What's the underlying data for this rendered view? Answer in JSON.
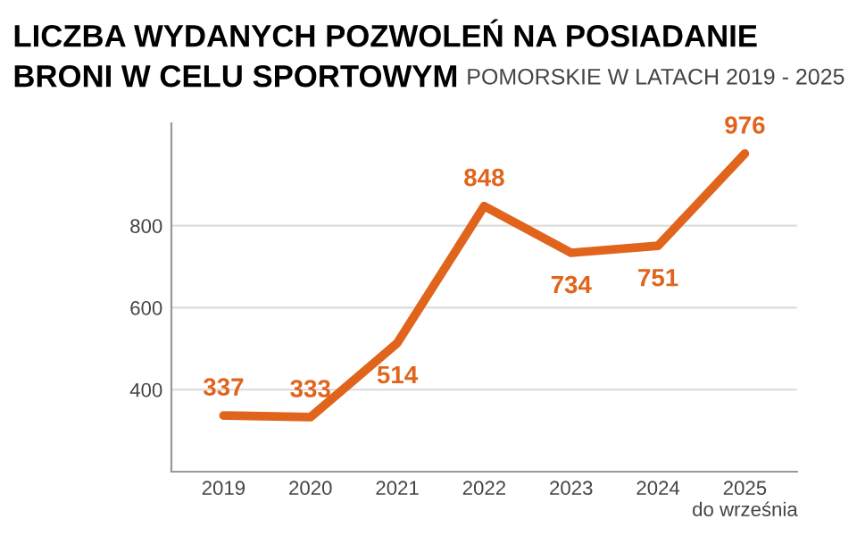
{
  "chart_data": {
    "type": "line",
    "title": "LICZBA WYDANYCH POZWOLEŃ NA POSIADANIE\nBRONI W CELU SPORTOWYM",
    "subtitle": "POMORSKIE W LATACH 2019 - 2025",
    "categories": [
      "2019",
      "2020",
      "2021",
      "2022",
      "2023",
      "2024",
      "2025\ndo września"
    ],
    "series": [
      {
        "color": "#e0641c",
        "values": [
          337,
          333,
          514,
          848,
          734,
          751,
          976
        ]
      }
    ],
    "ylim": [
      200,
      1050
    ],
    "yticks": [
      400,
      600,
      800
    ],
    "grid": "y",
    "data_labels": true,
    "marker": "none",
    "line_style": "solid"
  }
}
